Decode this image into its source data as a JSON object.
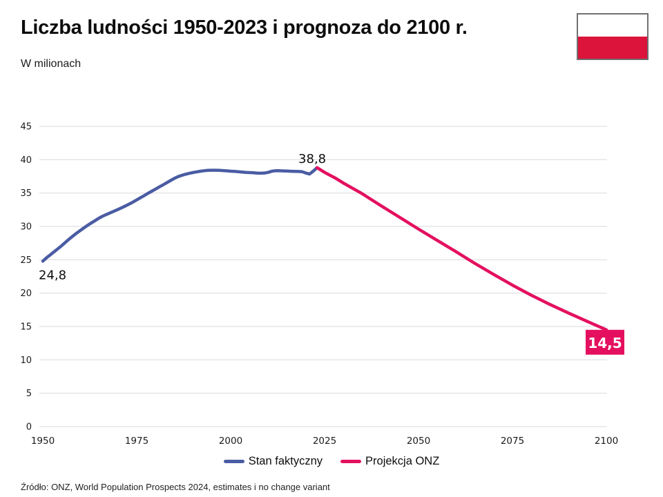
{
  "header": {
    "title": "Liczba ludności 1950-2023 i prognoza do 2100 r.",
    "subtitle": "W milionach"
  },
  "flag": {
    "country": "poland-flag",
    "stripe_top": "#ffffff",
    "stripe_bottom": "#dc143c"
  },
  "colors": {
    "accent_blue": "#4a5ca3",
    "accent_pink": "#e4105f",
    "gridline": "#d9d9d9",
    "text": "#1a1a1a",
    "flag_red": "#dc143c",
    "flag_border": "#6f6f6f"
  },
  "chart_data": {
    "type": "line",
    "title": "Liczba ludności 1950-2023 i prognoza do 2100 r.",
    "subtitle": "W milionach",
    "xlabel": "",
    "ylabel": "W milionach",
    "xlim": [
      1950,
      2100
    ],
    "ylim": [
      0,
      45
    ],
    "yticks": [
      0,
      5,
      10,
      15,
      20,
      25,
      30,
      35,
      40,
      45
    ],
    "xticks": [
      1950,
      1975,
      2000,
      2025,
      2050,
      2075,
      2100
    ],
    "grid": "horizontal",
    "legend_position": "bottom-center",
    "series": [
      {
        "name": "Stan faktyczny",
        "color": "#4a5ca3",
        "points": [
          [
            1950,
            24.8
          ],
          [
            1951,
            25.3
          ],
          [
            1952,
            25.75
          ],
          [
            1953,
            26.2
          ],
          [
            1954,
            26.65
          ],
          [
            1955,
            27.1
          ],
          [
            1956,
            27.6
          ],
          [
            1957,
            28.1
          ],
          [
            1958,
            28.55
          ],
          [
            1959,
            29.0
          ],
          [
            1960,
            29.4
          ],
          [
            1961,
            29.8
          ],
          [
            1962,
            30.2
          ],
          [
            1963,
            30.55
          ],
          [
            1964,
            30.9
          ],
          [
            1965,
            31.25
          ],
          [
            1966,
            31.55
          ],
          [
            1967,
            31.8
          ],
          [
            1968,
            32.05
          ],
          [
            1969,
            32.3
          ],
          [
            1970,
            32.55
          ],
          [
            1971,
            32.8
          ],
          [
            1972,
            33.07
          ],
          [
            1973,
            33.35
          ],
          [
            1974,
            33.65
          ],
          [
            1975,
            33.97
          ],
          [
            1976,
            34.3
          ],
          [
            1977,
            34.62
          ],
          [
            1978,
            34.95
          ],
          [
            1979,
            35.28
          ],
          [
            1980,
            35.6
          ],
          [
            1981,
            35.92
          ],
          [
            1982,
            36.23
          ],
          [
            1983,
            36.55
          ],
          [
            1984,
            36.88
          ],
          [
            1985,
            37.2
          ],
          [
            1986,
            37.46
          ],
          [
            1987,
            37.66
          ],
          [
            1988,
            37.82
          ],
          [
            1989,
            37.96
          ],
          [
            1990,
            38.08
          ],
          [
            1991,
            38.18
          ],
          [
            1992,
            38.28
          ],
          [
            1993,
            38.35
          ],
          [
            1994,
            38.4
          ],
          [
            1995,
            38.42
          ],
          [
            1996,
            38.42
          ],
          [
            1997,
            38.4
          ],
          [
            1998,
            38.37
          ],
          [
            1999,
            38.33
          ],
          [
            2000,
            38.28
          ],
          [
            2001,
            38.24
          ],
          [
            2002,
            38.2
          ],
          [
            2003,
            38.15
          ],
          [
            2004,
            38.1
          ],
          [
            2005,
            38.07
          ],
          [
            2006,
            38.05
          ],
          [
            2007,
            38.0
          ],
          [
            2008,
            37.98
          ],
          [
            2009,
            38.0
          ],
          [
            2010,
            38.1
          ],
          [
            2011,
            38.28
          ],
          [
            2012,
            38.35
          ],
          [
            2013,
            38.34
          ],
          [
            2014,
            38.32
          ],
          [
            2015,
            38.3
          ],
          [
            2016,
            38.27
          ],
          [
            2017,
            38.25
          ],
          [
            2018,
            38.23
          ],
          [
            2019,
            38.2
          ],
          [
            2020,
            38.0
          ],
          [
            2021,
            37.85
          ],
          [
            2022,
            38.3
          ],
          [
            2023,
            38.8
          ]
        ]
      },
      {
        "name": "Projekcja ONZ",
        "color": "#e4105f",
        "points": [
          [
            2023,
            38.8
          ],
          [
            2024,
            38.45
          ],
          [
            2025,
            38.1
          ],
          [
            2026,
            37.8
          ],
          [
            2027,
            37.5
          ],
          [
            2028,
            37.2
          ],
          [
            2029,
            36.85
          ],
          [
            2030,
            36.5
          ],
          [
            2035,
            34.9
          ],
          [
            2040,
            33.1
          ],
          [
            2045,
            31.35
          ],
          [
            2050,
            29.6
          ],
          [
            2055,
            27.9
          ],
          [
            2060,
            26.2
          ],
          [
            2065,
            24.45
          ],
          [
            2070,
            22.8
          ],
          [
            2075,
            21.2
          ],
          [
            2080,
            19.7
          ],
          [
            2085,
            18.3
          ],
          [
            2090,
            17.0
          ],
          [
            2095,
            15.75
          ],
          [
            2100,
            14.5
          ]
        ]
      }
    ],
    "annotations": [
      {
        "id": "start-value",
        "text": "24,8",
        "year": 1950,
        "value": 24.8,
        "placement": "below-right"
      },
      {
        "id": "peak-value",
        "text": "38,8",
        "year": 2023,
        "value": 38.8,
        "placement": "above"
      },
      {
        "id": "end-value",
        "text": "14,5",
        "year": 2100,
        "value": 14.5,
        "placement": "box"
      }
    ]
  },
  "footer": {
    "source": "Źródło: ONZ, World Population Prospects 2024, estimates i no change variant"
  }
}
